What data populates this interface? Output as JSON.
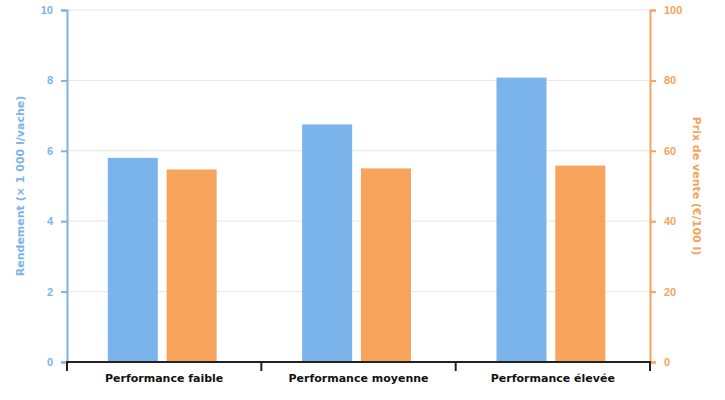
{
  "chart_data": {
    "type": "bar",
    "categories": [
      "Performance faible",
      "Performance moyenne",
      "Performance élevée"
    ],
    "series": [
      {
        "color": "#7ab4ea",
        "values": [
          5.8,
          6.75,
          8.08
        ]
      },
      {
        "color": "#f7a35c",
        "values": [
          54.7,
          55.0,
          55.8
        ],
        "axis": "y2"
      }
    ],
    "ylabel": "Rendement (× 1 000 l/vache)",
    "y2label": "Prix de vente (€/100 l)",
    "ylim": [
      0,
      10
    ],
    "yticks": [
      0,
      2,
      4,
      6,
      8,
      10
    ],
    "y2lim": [
      0,
      100
    ],
    "y2ticks": [
      0,
      20,
      40,
      60,
      80,
      100
    ],
    "grid": true
  }
}
